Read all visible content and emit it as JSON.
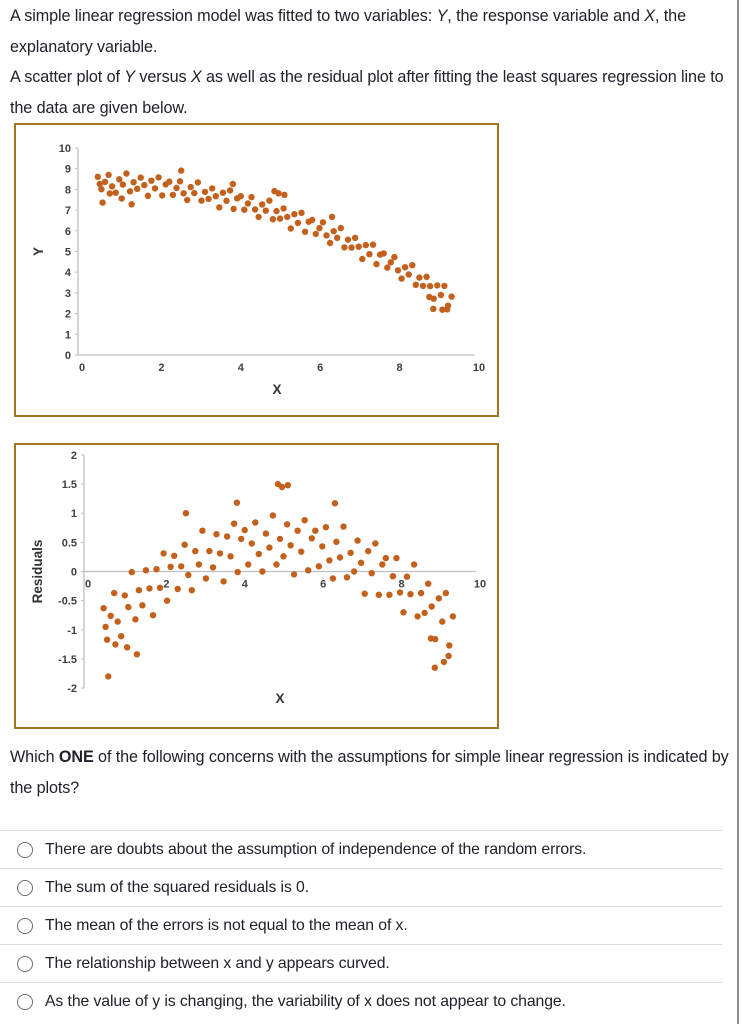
{
  "page": {
    "intro_p1": [
      {
        "t": "A simple linear regression model was fitted to two variables: "
      },
      {
        "t": "Y",
        "i": true
      },
      {
        "t": ", the response variable and "
      },
      {
        "t": "X",
        "i": true
      },
      {
        "t": ", the explanatory variable."
      }
    ],
    "intro_p2": [
      {
        "t": "A scatter plot of "
      },
      {
        "t": "Y",
        "i": true
      },
      {
        "t": " versus "
      },
      {
        "t": "X",
        "i": true
      },
      {
        "t": " as well as the residual plot after fitting the least squares regression line to the data are given below."
      }
    ],
    "question": [
      {
        "t": "Which "
      },
      {
        "t": "ONE",
        "b": true
      },
      {
        "t": " of the following concerns with the assumptions for simple linear regression is indicated by the plots?"
      }
    ],
    "options": [
      "There are doubts about the assumption of independence of the random errors.",
      "The sum of the squared residuals is 0.",
      "The mean of the errors is not equal to the mean of x.",
      "The relationship between x and y appears curved.",
      "As the value of y is changing, the variability of x does not appear to change."
    ]
  },
  "chart_data": [
    {
      "type": "scatter",
      "title": "",
      "xlabel": "X",
      "ylabel": "Y",
      "xlim": [
        0,
        10
      ],
      "ylim": [
        0,
        10
      ],
      "x_axis_at": 0,
      "x_ticks": [
        0,
        2,
        4,
        6,
        8,
        10
      ],
      "y_ticks": [
        0,
        1,
        2,
        3,
        4,
        5,
        6,
        7,
        8,
        9,
        10
      ],
      "grid": false,
      "legend": false,
      "marker_color": "#c2601c",
      "points": [
        [
          0.5,
          8.61
        ],
        [
          0.59,
          8.01
        ],
        [
          0.68,
          8.36
        ],
        [
          0.77,
          8.7
        ],
        [
          0.86,
          8.15
        ],
        [
          0.95,
          7.84
        ],
        [
          1.04,
          8.49
        ],
        [
          1.13,
          8.23
        ],
        [
          1.22,
          8.77
        ],
        [
          1.31,
          7.91
        ],
        [
          1.4,
          8.35
        ],
        [
          1.49,
          8.03
        ],
        [
          1.58,
          8.57
        ],
        [
          1.67,
          8.21
        ],
        [
          1.76,
          7.69
        ],
        [
          1.85,
          8.42
        ],
        [
          1.94,
          8.05
        ],
        [
          2.03,
          8.58
        ],
        [
          2.12,
          7.71
        ],
        [
          2.21,
          8.24
        ],
        [
          2.3,
          8.37
        ],
        [
          2.39,
          7.74
        ],
        [
          2.48,
          8.07
        ],
        [
          2.57,
          8.39
        ],
        [
          2.66,
          7.81
        ],
        [
          2.75,
          7.49
        ],
        [
          2.84,
          8.11
        ],
        [
          2.93,
          7.82
        ],
        [
          3.02,
          8.34
        ],
        [
          3.11,
          7.46
        ],
        [
          3.2,
          7.88
        ],
        [
          3.29,
          7.54
        ],
        [
          3.38,
          8.05
        ],
        [
          3.47,
          7.67
        ],
        [
          3.56,
          7.13
        ],
        [
          3.65,
          7.84
        ],
        [
          3.74,
          7.45
        ],
        [
          3.83,
          7.95
        ],
        [
          3.92,
          7.06
        ],
        [
          4.01,
          7.57
        ],
        [
          4.1,
          7.67
        ],
        [
          4.19,
          7.02
        ],
        [
          4.28,
          7.32
        ],
        [
          4.37,
          7.63
        ],
        [
          4.46,
          7.03
        ],
        [
          4.55,
          6.67
        ],
        [
          4.64,
          7.27
        ],
        [
          4.73,
          6.97
        ],
        [
          4.82,
          7.46
        ],
        [
          4.91,
          6.56
        ],
        [
          5.0,
          6.95
        ],
        [
          5.09,
          6.59
        ],
        [
          5.18,
          7.08
        ],
        [
          5.27,
          6.67
        ],
        [
          5.36,
          6.11
        ],
        [
          5.45,
          6.8
        ],
        [
          5.54,
          6.38
        ],
        [
          5.63,
          6.87
        ],
        [
          5.72,
          5.95
        ],
        [
          5.81,
          6.44
        ],
        [
          5.9,
          6.52
        ],
        [
          5.99,
          5.85
        ],
        [
          6.08,
          6.13
        ],
        [
          6.17,
          6.41
        ],
        [
          6.26,
          5.78
        ],
        [
          6.35,
          5.41
        ],
        [
          6.44,
          5.98
        ],
        [
          6.53,
          5.66
        ],
        [
          6.62,
          6.13
        ],
        [
          6.71,
          5.2
        ],
        [
          6.8,
          5.57
        ],
        [
          6.89,
          5.19
        ],
        [
          6.98,
          5.66
        ],
        [
          7.07,
          5.23
        ],
        [
          7.16,
          4.64
        ],
        [
          7.25,
          5.31
        ],
        [
          7.34,
          4.87
        ],
        [
          7.43,
          5.33
        ],
        [
          7.52,
          4.39
        ],
        [
          7.61,
          4.85
        ],
        [
          7.7,
          4.91
        ],
        [
          7.79,
          4.22
        ],
        [
          7.88,
          4.48
        ],
        [
          7.97,
          4.73
        ],
        [
          8.06,
          4.09
        ],
        [
          8.15,
          3.69
        ],
        [
          8.24,
          4.24
        ],
        [
          8.33,
          3.89
        ],
        [
          8.42,
          4.34
        ],
        [
          8.51,
          3.39
        ],
        [
          8.6,
          3.74
        ],
        [
          8.69,
          3.34
        ],
        [
          8.78,
          3.78
        ],
        [
          8.87,
          3.33
        ],
        [
          8.96,
          2.72
        ],
        [
          9.05,
          3.36
        ],
        [
          9.14,
          2.9
        ],
        [
          9.23,
          3.34
        ],
        [
          9.32,
          2.38
        ],
        [
          9.41,
          2.82
        ],
        [
          0.62,
          7.36
        ],
        [
          0.8,
          7.8
        ],
        [
          1.1,
          7.56
        ],
        [
          1.35,
          7.28
        ],
        [
          2.6,
          8.91
        ],
        [
          3.9,
          8.26
        ],
        [
          4.95,
          7.92
        ],
        [
          5.05,
          7.81
        ],
        [
          6.4,
          6.67
        ],
        [
          8.95,
          2.23
        ],
        [
          9.18,
          2.19
        ],
        [
          9.3,
          2.21
        ],
        [
          0.55,
          8.26
        ],
        [
          8.85,
          2.8
        ],
        [
          5.2,
          7.74
        ]
      ]
    },
    {
      "type": "scatter",
      "title": "",
      "xlabel": "X",
      "ylabel": "Residuals",
      "xlim": [
        0,
        10
      ],
      "ylim": [
        -2,
        2
      ],
      "x_axis_at": 0,
      "x_ticks": [
        0,
        2,
        4,
        6,
        8,
        10
      ],
      "y_ticks": [
        2,
        1.5,
        1,
        0.5,
        0,
        -0.5,
        -1,
        -1.5,
        -2
      ],
      "grid": false,
      "legend": false,
      "marker_color": "#c2601c",
      "points": [
        [
          0.5,
          -0.63
        ],
        [
          0.59,
          -1.17
        ],
        [
          0.68,
          -0.76
        ],
        [
          0.77,
          -0.37
        ],
        [
          0.86,
          -0.86
        ],
        [
          0.95,
          -1.11
        ],
        [
          1.04,
          -0.41
        ],
        [
          1.13,
          -0.61
        ],
        [
          1.22,
          -0.01
        ],
        [
          1.31,
          -0.82
        ],
        [
          1.4,
          -0.32
        ],
        [
          1.49,
          -0.58
        ],
        [
          1.58,
          0.02
        ],
        [
          1.67,
          -0.29
        ],
        [
          1.76,
          -0.75
        ],
        [
          1.85,
          0.04
        ],
        [
          1.94,
          -0.28
        ],
        [
          2.03,
          0.31
        ],
        [
          2.12,
          -0.5
        ],
        [
          2.21,
          0.08
        ],
        [
          2.3,
          0.27
        ],
        [
          2.39,
          -0.3
        ],
        [
          2.48,
          0.09
        ],
        [
          2.57,
          0.46
        ],
        [
          2.66,
          -0.06
        ],
        [
          2.75,
          -0.32
        ],
        [
          2.84,
          0.35
        ],
        [
          2.93,
          0.12
        ],
        [
          3.02,
          0.7
        ],
        [
          3.11,
          -0.12
        ],
        [
          3.2,
          0.35
        ],
        [
          3.29,
          0.07
        ],
        [
          3.38,
          0.64
        ],
        [
          3.47,
          0.31
        ],
        [
          3.56,
          -0.17
        ],
        [
          3.65,
          0.6
        ],
        [
          3.74,
          0.26
        ],
        [
          3.83,
          0.82
        ],
        [
          3.92,
          -0.01
        ],
        [
          4.01,
          0.56
        ],
        [
          4.1,
          0.71
        ],
        [
          4.19,
          0.12
        ],
        [
          4.28,
          0.48
        ],
        [
          4.37,
          0.84
        ],
        [
          4.46,
          0.3
        ],
        [
          4.55,
          0.0
        ],
        [
          4.64,
          0.65
        ],
        [
          4.73,
          0.41
        ],
        [
          4.82,
          0.96
        ],
        [
          4.91,
          0.12
        ],
        [
          5.0,
          0.56
        ],
        [
          5.09,
          0.26
        ],
        [
          5.18,
          0.81
        ],
        [
          5.27,
          0.45
        ],
        [
          5.36,
          -0.05
        ],
        [
          5.45,
          0.7
        ],
        [
          5.54,
          0.34
        ],
        [
          5.63,
          0.88
        ],
        [
          5.72,
          0.02
        ],
        [
          5.81,
          0.57
        ],
        [
          5.9,
          0.7
        ],
        [
          5.99,
          0.09
        ],
        [
          6.08,
          0.43
        ],
        [
          6.17,
          0.76
        ],
        [
          6.26,
          0.19
        ],
        [
          6.35,
          -0.12
        ],
        [
          6.44,
          0.51
        ],
        [
          6.53,
          0.24
        ],
        [
          6.62,
          0.77
        ],
        [
          6.71,
          -0.1
        ],
        [
          6.8,
          0.32
        ],
        [
          6.89,
          0.0
        ],
        [
          6.98,
          0.53
        ],
        [
          7.07,
          0.15
        ],
        [
          7.16,
          -0.38
        ],
        [
          7.25,
          0.35
        ],
        [
          7.34,
          -0.03
        ],
        [
          7.43,
          0.48
        ],
        [
          7.52,
          -0.4
        ],
        [
          7.61,
          0.12
        ],
        [
          7.7,
          0.23
        ],
        [
          7.79,
          -0.4
        ],
        [
          7.88,
          -0.08
        ],
        [
          7.97,
          0.23
        ],
        [
          8.06,
          -0.36
        ],
        [
          8.15,
          -0.7
        ],
        [
          8.24,
          -0.09
        ],
        [
          8.33,
          -0.39
        ],
        [
          8.42,
          0.12
        ],
        [
          8.51,
          -0.77
        ],
        [
          8.6,
          -0.37
        ],
        [
          8.69,
          -0.71
        ],
        [
          8.78,
          -0.21
        ],
        [
          8.87,
          -0.6
        ],
        [
          8.96,
          -1.16
        ],
        [
          9.05,
          -0.46
        ],
        [
          9.14,
          -0.86
        ],
        [
          9.23,
          -0.37
        ],
        [
          9.32,
          -1.27
        ],
        [
          9.41,
          -0.77
        ],
        [
          0.62,
          -1.8
        ],
        [
          0.8,
          -1.25
        ],
        [
          1.1,
          -1.3
        ],
        [
          1.35,
          -1.42
        ],
        [
          2.6,
          1.0
        ],
        [
          3.9,
          1.18
        ],
        [
          4.95,
          1.5
        ],
        [
          5.05,
          1.45
        ],
        [
          6.4,
          1.17
        ],
        [
          8.95,
          -1.65
        ],
        [
          9.18,
          -1.55
        ],
        [
          9.3,
          -1.45
        ],
        [
          0.55,
          -0.95
        ],
        [
          8.85,
          -1.15
        ],
        [
          5.2,
          1.48
        ]
      ]
    }
  ]
}
